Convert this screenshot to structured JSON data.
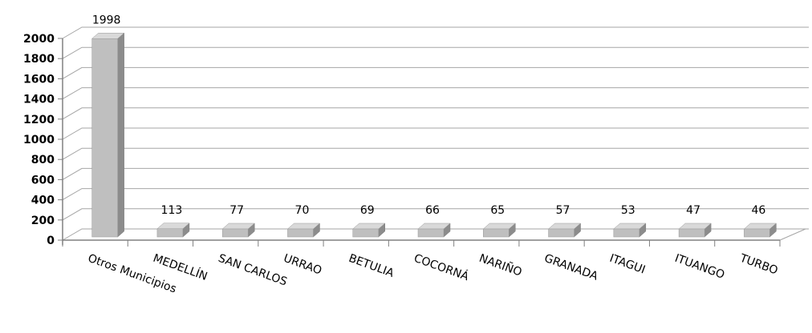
{
  "chart_data": {
    "type": "bar",
    "style": "3d-column",
    "categories": [
      "Otros Municipios",
      "MEDELLÍN",
      "SAN CARLOS",
      "URRAO",
      "BETULIA",
      "COCORNÁ",
      "NARIÑO",
      "GRANADA",
      "ITAGUI",
      "ITUANGO",
      "TURBO"
    ],
    "values": [
      1998,
      113,
      77,
      70,
      69,
      66,
      65,
      57,
      53,
      47,
      46
    ],
    "value_labels": [
      "1998",
      "113",
      "77",
      "70",
      "69",
      "66",
      "65",
      "57",
      "53",
      "47",
      "46"
    ],
    "ylim": [
      0,
      2000
    ],
    "yticks": [
      "0",
      "200",
      "400",
      "600",
      "800",
      "1000",
      "1200",
      "1400",
      "1600",
      "1800",
      "2000"
    ],
    "grid": true,
    "legend": "none",
    "colors": {
      "bar_front": "#bfbfbf",
      "bar_side": "#8c8c8c",
      "bar_top": "#d9d9d9",
      "grid": "#a6a6a6",
      "axis": "#808080"
    }
  }
}
